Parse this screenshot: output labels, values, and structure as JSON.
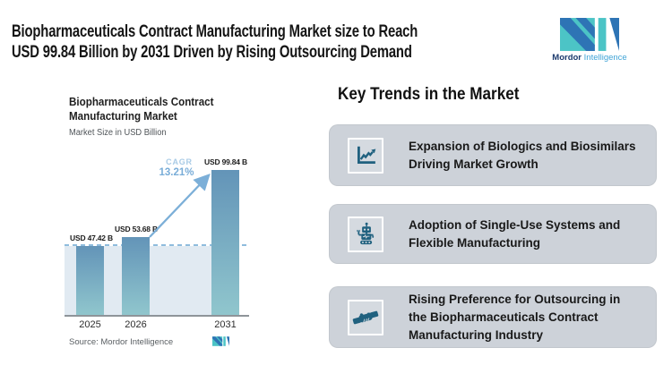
{
  "header": {
    "title_lines": [
      "Biopharmaceuticals Contract Manufacturing Market size to Reach",
      "USD 99.84 Billion by 2031 Driven by Rising Outsourcing Demand"
    ],
    "brand": {
      "name_bold": "Mordor",
      "name_light": "Intelligence"
    }
  },
  "chart_data": {
    "type": "bar",
    "title_lines": [
      "Biopharmaceuticals Contract",
      "Manufacturing Market"
    ],
    "subtitle": "Market Size in USD Billion",
    "categories": [
      "2025",
      "2026",
      "2031"
    ],
    "values": [
      47.42,
      53.68,
      99.84
    ],
    "value_labels": [
      "USD 47.42 B",
      "USD 53.68 B",
      "USD 99.84 B"
    ],
    "unit": "USD Billion",
    "ylim": [
      0,
      99.84
    ],
    "grid": "off",
    "legend": "none",
    "cagr": {
      "label": "CAGR",
      "value": "13.21%"
    },
    "annotations": [
      "dashed reference line at 2025 value with shaded band below"
    ],
    "source": "Source: Mordor Intelligence"
  },
  "trends": {
    "heading": "Key Trends in the Market",
    "cards": [
      {
        "icon": "line-chart-icon",
        "lines": [
          "Expansion of Biologics and Biosimilars",
          "Driving Market Growth"
        ]
      },
      {
        "icon": "robot-icon",
        "lines": [
          "Adoption of Single-Use Systems and",
          "Flexible Manufacturing"
        ]
      },
      {
        "icon": "handshake-icon",
        "lines": [
          "Rising Preference for Outsourcing in",
          "the Biopharmaceuticals Contract",
          "Manufacturing Industry"
        ]
      }
    ]
  },
  "colors": {
    "accent_blue": "#2e74b5",
    "accent_teal": "#4cc4c6",
    "icon_blue": "#20617f",
    "card_bg": "#cdd2d9",
    "bar_top": "#6394b8",
    "bar_bottom": "#90c6cd",
    "band": "#e1eaf2",
    "cagr_arrow": "#7cafd8"
  }
}
